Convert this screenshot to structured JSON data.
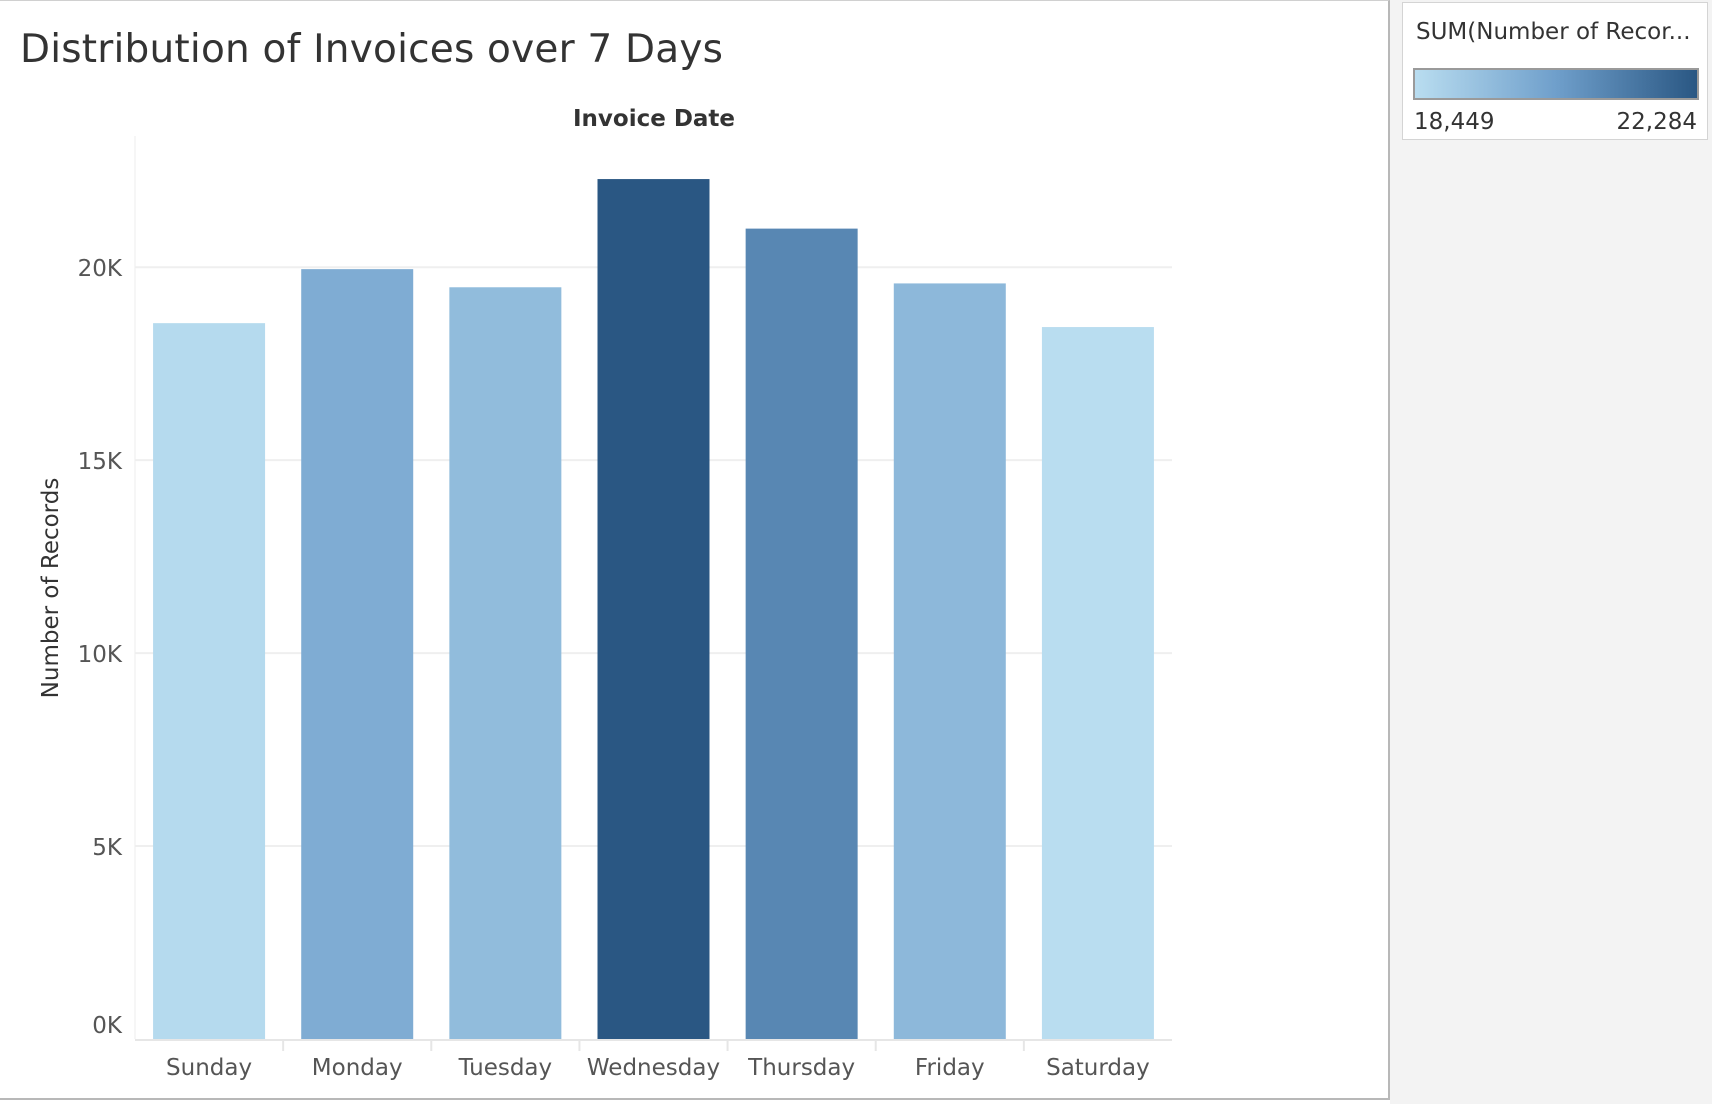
{
  "chart_data": {
    "type": "bar",
    "title": "Distribution of Invoices over 7 Days",
    "column_header": "Invoice Date",
    "ylabel": "Number of Records",
    "xlabel": "",
    "categories": [
      "Sunday",
      "Monday",
      "Tuesday",
      "Wednesday",
      "Thursday",
      "Friday",
      "Saturday"
    ],
    "values": [
      18550,
      19950,
      19480,
      22284,
      21000,
      19580,
      18449
    ],
    "ylim": [
      0,
      23400
    ],
    "yticks": [
      0,
      5000,
      10000,
      15000,
      20000
    ],
    "ytick_labels": [
      "0K",
      "5K",
      "10K",
      "15K",
      "20K"
    ],
    "grid": "horizontal",
    "color_legend": {
      "title": "SUM(Number of Recor...",
      "min_label": "18,449",
      "max_label": "22,284",
      "min_value": 18449,
      "max_value": 22284,
      "color_low": "#b9ddf0",
      "color_high": "#2a5783"
    }
  }
}
